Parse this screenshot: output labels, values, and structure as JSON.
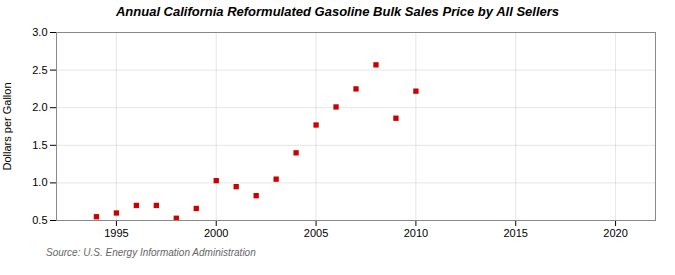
{
  "chart_data": {
    "type": "scatter",
    "title": "Annual California Reformulated Gasoline Bulk Sales Price by All Sellers",
    "ylabel": "Dollars per Gallon",
    "source": "Source: U.S. Energy Information Administration",
    "x": [
      1994,
      1995,
      1996,
      1997,
      1998,
      1999,
      2000,
      2001,
      2002,
      2003,
      2004,
      2005,
      2006,
      2007,
      2008,
      2009,
      2010
    ],
    "values": [
      0.55,
      0.6,
      0.7,
      0.7,
      0.53,
      0.66,
      1.03,
      0.95,
      0.83,
      1.05,
      1.4,
      1.77,
      2.01,
      2.25,
      2.57,
      1.86,
      2.22
    ],
    "color": "#cc0000",
    "marker": "square",
    "xlim": [
      1992,
      2022
    ],
    "xticks": [
      1995,
      2000,
      2005,
      2010,
      2015,
      2020
    ],
    "ylim": [
      0.5,
      3.0
    ],
    "yticks": [
      0.5,
      {
        "value": 1.0,
        "label": "1.0"
      },
      1.5,
      {
        "value": 2.0,
        "label": "2.0"
      },
      2.5,
      {
        "value": 3.0,
        "label": "3.0"
      }
    ],
    "grid": true
  }
}
